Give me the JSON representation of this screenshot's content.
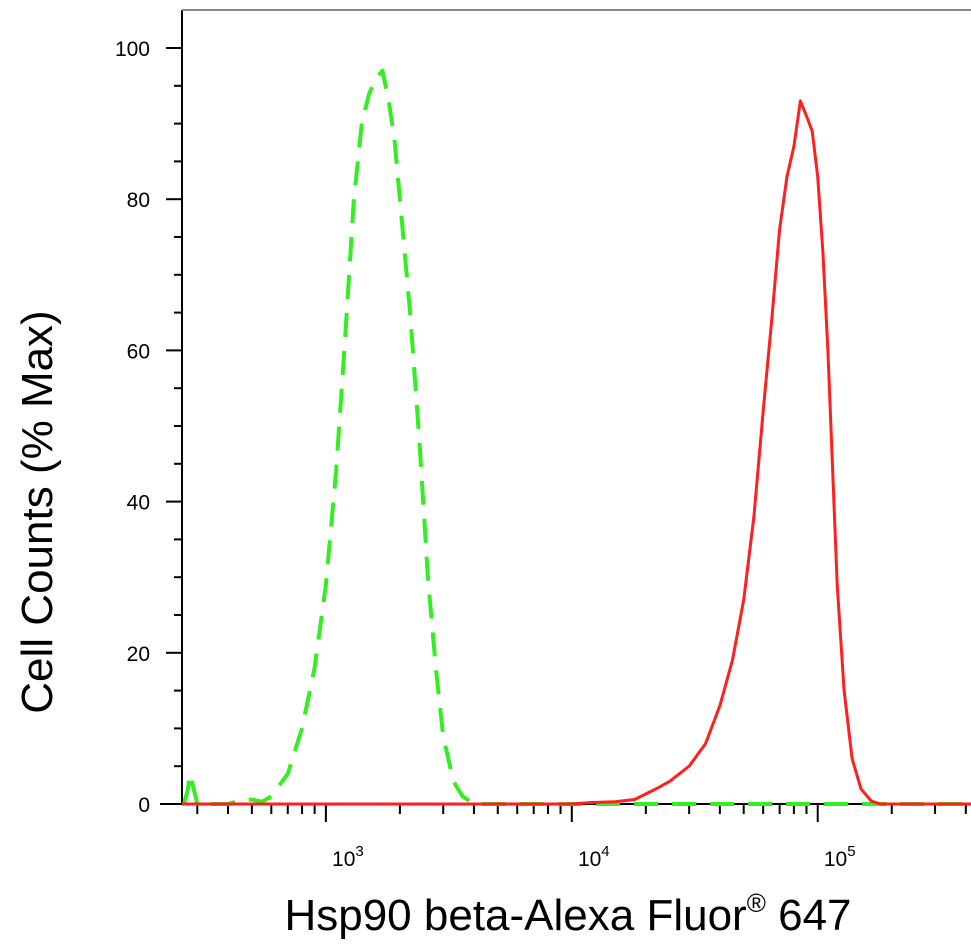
{
  "chart_data": {
    "type": "line",
    "xlabel": "Hsp90 beta-Alexa Fluor",
    "xlabel_superscript": "®",
    "xlabel_suffix": " 647",
    "ylabel": "Cell Counts (% Max)",
    "xscale": "log",
    "xlim": [
      260,
      420000
    ],
    "ylim": [
      0,
      100
    ],
    "yticks": [
      0,
      20,
      40,
      60,
      80,
      100
    ],
    "xtick_labels": [
      {
        "base": "10",
        "exp": "3",
        "value": 1000
      },
      {
        "base": "10",
        "exp": "4",
        "value": 10000
      },
      {
        "base": "10",
        "exp": "5",
        "value": 100000
      }
    ],
    "grid": false,
    "legend": "none",
    "series": [
      {
        "color": "#33ee22",
        "style": "dashed",
        "points": [
          [
            265,
            0
          ],
          [
            275,
            2
          ],
          [
            280,
            4
          ],
          [
            290,
            2
          ],
          [
            300,
            0
          ],
          [
            400,
            0
          ],
          [
            450,
            0.5
          ],
          [
            500,
            0.6
          ],
          [
            550,
            0.3
          ],
          [
            600,
            1
          ],
          [
            700,
            4
          ],
          [
            800,
            10
          ],
          [
            900,
            18
          ],
          [
            1000,
            29
          ],
          [
            1100,
            44
          ],
          [
            1200,
            62
          ],
          [
            1300,
            80
          ],
          [
            1400,
            90
          ],
          [
            1500,
            94
          ],
          [
            1600,
            96
          ],
          [
            1700,
            97
          ],
          [
            1800,
            93
          ],
          [
            1900,
            88
          ],
          [
            2000,
            80
          ],
          [
            2200,
            65
          ],
          [
            2400,
            48
          ],
          [
            2600,
            30
          ],
          [
            2800,
            18
          ],
          [
            3000,
            9
          ],
          [
            3300,
            3
          ],
          [
            3600,
            1
          ],
          [
            4000,
            0
          ],
          [
            420000,
            0
          ]
        ]
      },
      {
        "color": "#ff1f1f",
        "style": "solid",
        "points": [
          [
            260,
            0
          ],
          [
            10000,
            0
          ],
          [
            12000,
            0.2
          ],
          [
            15000,
            0.3
          ],
          [
            18000,
            0.6
          ],
          [
            22000,
            2
          ],
          [
            25000,
            3
          ],
          [
            30000,
            5
          ],
          [
            35000,
            8
          ],
          [
            40000,
            13
          ],
          [
            45000,
            19
          ],
          [
            50000,
            27
          ],
          [
            55000,
            38
          ],
          [
            60000,
            52
          ],
          [
            65000,
            64
          ],
          [
            70000,
            76
          ],
          [
            75000,
            83
          ],
          [
            80000,
            87
          ],
          [
            85000,
            93
          ],
          [
            90000,
            91
          ],
          [
            95000,
            89
          ],
          [
            100000,
            83
          ],
          [
            105000,
            73
          ],
          [
            110000,
            60
          ],
          [
            115000,
            44
          ],
          [
            120000,
            29
          ],
          [
            128000,
            15
          ],
          [
            138000,
            6
          ],
          [
            150000,
            2
          ],
          [
            165000,
            0.4
          ],
          [
            180000,
            0
          ],
          [
            420000,
            0
          ]
        ]
      }
    ]
  }
}
